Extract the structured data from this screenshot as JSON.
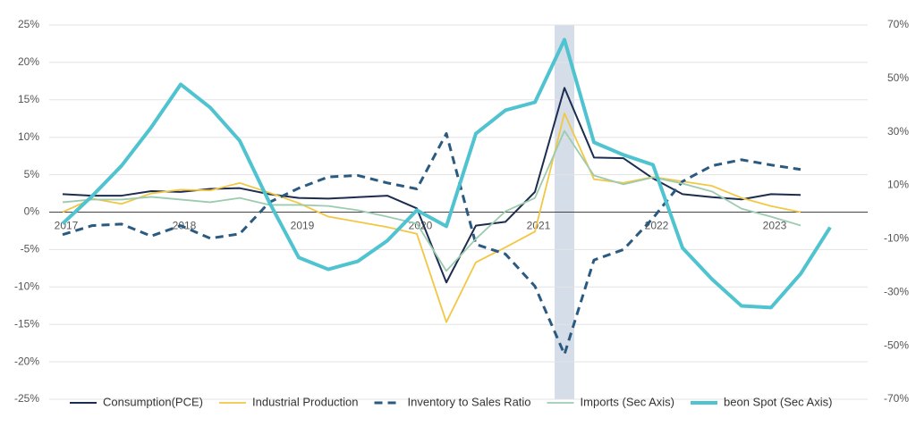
{
  "chart_data": {
    "type": "line",
    "categories": [
      "2017",
      null,
      null,
      null,
      "2018",
      null,
      null,
      null,
      "2019",
      null,
      null,
      null,
      "2020",
      null,
      null,
      null,
      "2021",
      null,
      null,
      null,
      "2022",
      null,
      null,
      null,
      "2023",
      null,
      null
    ],
    "highlight_category": 17,
    "highlight_color": "#d5dde9",
    "ylim": [
      -25,
      25
    ],
    "yticks": [
      {
        "value": 25,
        "label": "25%"
      },
      {
        "value": 20,
        "label": "20%"
      },
      {
        "value": 15,
        "label": "15%"
      },
      {
        "value": 10,
        "label": "10%"
      },
      {
        "value": 5,
        "label": "5%"
      },
      {
        "value": 0,
        "label": "0%"
      },
      {
        "value": -5,
        "label": "-5%"
      },
      {
        "value": -10,
        "label": "-10%"
      },
      {
        "value": -15,
        "label": "-15%"
      },
      {
        "value": -20,
        "label": "-20%"
      },
      {
        "value": -25,
        "label": "-25%"
      }
    ],
    "y2lim": [
      -70,
      70
    ],
    "y2ticks": [
      {
        "value": 70,
        "label": "70%"
      },
      {
        "value": 50,
        "label": "50%"
      },
      {
        "value": 30,
        "label": "30%"
      },
      {
        "value": 10,
        "label": "10%"
      },
      {
        "value": -10,
        "label": "-10%"
      },
      {
        "value": -30,
        "label": "-30%"
      },
      {
        "value": -50,
        "label": "-50%"
      },
      {
        "value": -70,
        "label": "-70%"
      }
    ],
    "grid": true,
    "legend": "bottom",
    "series": [
      {
        "name": "Consumption(PCE)",
        "color": "#1d2d4f",
        "width": 2,
        "dashed": false,
        "values": [
          2.4,
          2.2,
          2.2,
          2.8,
          2.7,
          3.1,
          3.2,
          2.4,
          1.9,
          1.8,
          2.0,
          2.2,
          0.5,
          -9.4,
          -1.8,
          -1.3,
          2.7,
          16.6,
          7.3,
          7.2,
          4.5,
          2.4,
          2.0,
          1.7,
          2.4,
          2.3,
          null
        ]
      },
      {
        "name": "Industrial Production",
        "color": "#f2c744",
        "width": 1.8,
        "dashed": false,
        "values": [
          0.0,
          1.8,
          1.1,
          2.5,
          3.0,
          2.9,
          3.9,
          2.6,
          1.2,
          -0.6,
          -1.3,
          -2.0,
          -2.9,
          -14.7,
          -6.7,
          -4.7,
          -2.6,
          13.2,
          4.4,
          3.9,
          4.7,
          4.1,
          3.5,
          1.9,
          0.8,
          0.0,
          null
        ]
      },
      {
        "name": "Inventory to Sales Ratio",
        "color": "#2a5a80",
        "width": 3,
        "dashed": true,
        "values": [
          -3.0,
          -1.8,
          -1.6,
          -3.2,
          -1.8,
          -3.5,
          -2.9,
          1.3,
          3.2,
          4.7,
          4.9,
          3.9,
          3.1,
          10.5,
          -4.3,
          -5.6,
          -9.9,
          -19.0,
          -6.4,
          -5.0,
          -0.8,
          4.1,
          6.2,
          7.0,
          6.3,
          5.7,
          null
        ]
      },
      {
        "name": "Imports (Sec Axis)",
        "color": "#9ccbb0",
        "width": 1.8,
        "dashed": false,
        "axis": "y2",
        "values": [
          3.7,
          4.7,
          4.7,
          5.7,
          4.7,
          3.7,
          5.3,
          2.7,
          2.7,
          2.3,
          0.7,
          -1.7,
          -4.3,
          -22,
          -10,
          0.3,
          5.3,
          30.4,
          13.7,
          10.4,
          13,
          10.7,
          7.7,
          1.3,
          -1.7,
          -5.0,
          null
        ]
      },
      {
        "name": "beon Spot (Sec Axis)",
        "color": "#4fc3cf",
        "width": 4,
        "dashed": false,
        "axis": "y2",
        "values": [
          -4.3,
          6,
          17.4,
          31.7,
          47.8,
          39.1,
          26.7,
          3.7,
          -17,
          -21.4,
          -18.4,
          -10.7,
          0.7,
          -5.3,
          29.4,
          38.1,
          41.1,
          64.5,
          26.1,
          21.4,
          17.7,
          -13.4,
          -25.1,
          -35.1,
          -35.7,
          -23.1,
          -5.7
        ]
      }
    ]
  }
}
